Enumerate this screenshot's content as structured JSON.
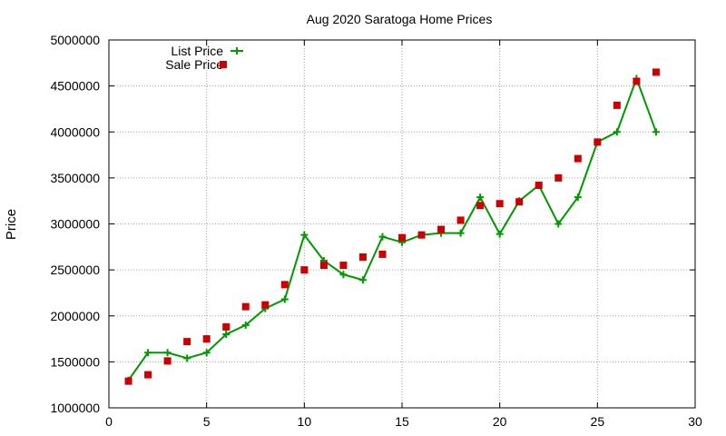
{
  "chart_data": {
    "type": "line",
    "title": "Aug 2020 Saratoga Home Prices",
    "xlabel": "",
    "ylabel": "Price",
    "xlim": [
      0,
      30
    ],
    "ylim": [
      1000000,
      5000000
    ],
    "x_ticks": [
      "0",
      "5",
      "10",
      "15",
      "20",
      "25",
      "30"
    ],
    "y_ticks": [
      "1000000",
      "1500000",
      "2000000",
      "2500000",
      "3000000",
      "3500000",
      "4000000",
      "4500000",
      "5000000"
    ],
    "grid": true,
    "legend_position": "top-left",
    "series": [
      {
        "name": "List Price",
        "style": "line-plus",
        "color": "#009900",
        "x": [
          1,
          2,
          3,
          4,
          5,
          6,
          7,
          8,
          9,
          10,
          11,
          12,
          13,
          14,
          15,
          16,
          17,
          18,
          19,
          20,
          21,
          22,
          23,
          24,
          25,
          26,
          27,
          28
        ],
        "values": [
          1300000,
          1600000,
          1600000,
          1540000,
          1600000,
          1800000,
          1900000,
          2080000,
          2180000,
          2880000,
          2600000,
          2450000,
          2390000,
          2860000,
          2800000,
          2880000,
          2900000,
          2900000,
          3290000,
          2890000,
          3250000,
          3420000,
          3000000,
          3290000,
          3890000,
          4000000,
          4580000,
          4000000
        ]
      },
      {
        "name": "Sale Price",
        "style": "square-points",
        "color": "#cc0000",
        "x": [
          1,
          2,
          3,
          4,
          5,
          6,
          7,
          8,
          9,
          10,
          11,
          12,
          13,
          14,
          15,
          16,
          17,
          18,
          19,
          20,
          21,
          22,
          23,
          24,
          25,
          26,
          27,
          28
        ],
        "values": [
          1290000,
          1360000,
          1510000,
          1720000,
          1750000,
          1880000,
          2100000,
          2120000,
          2340000,
          2500000,
          2550000,
          2550000,
          2640000,
          2670000,
          2850000,
          2880000,
          2940000,
          3040000,
          3200000,
          3220000,
          3240000,
          3420000,
          3500000,
          3710000,
          3890000,
          4290000,
          4550000,
          4650000
        ]
      }
    ]
  }
}
